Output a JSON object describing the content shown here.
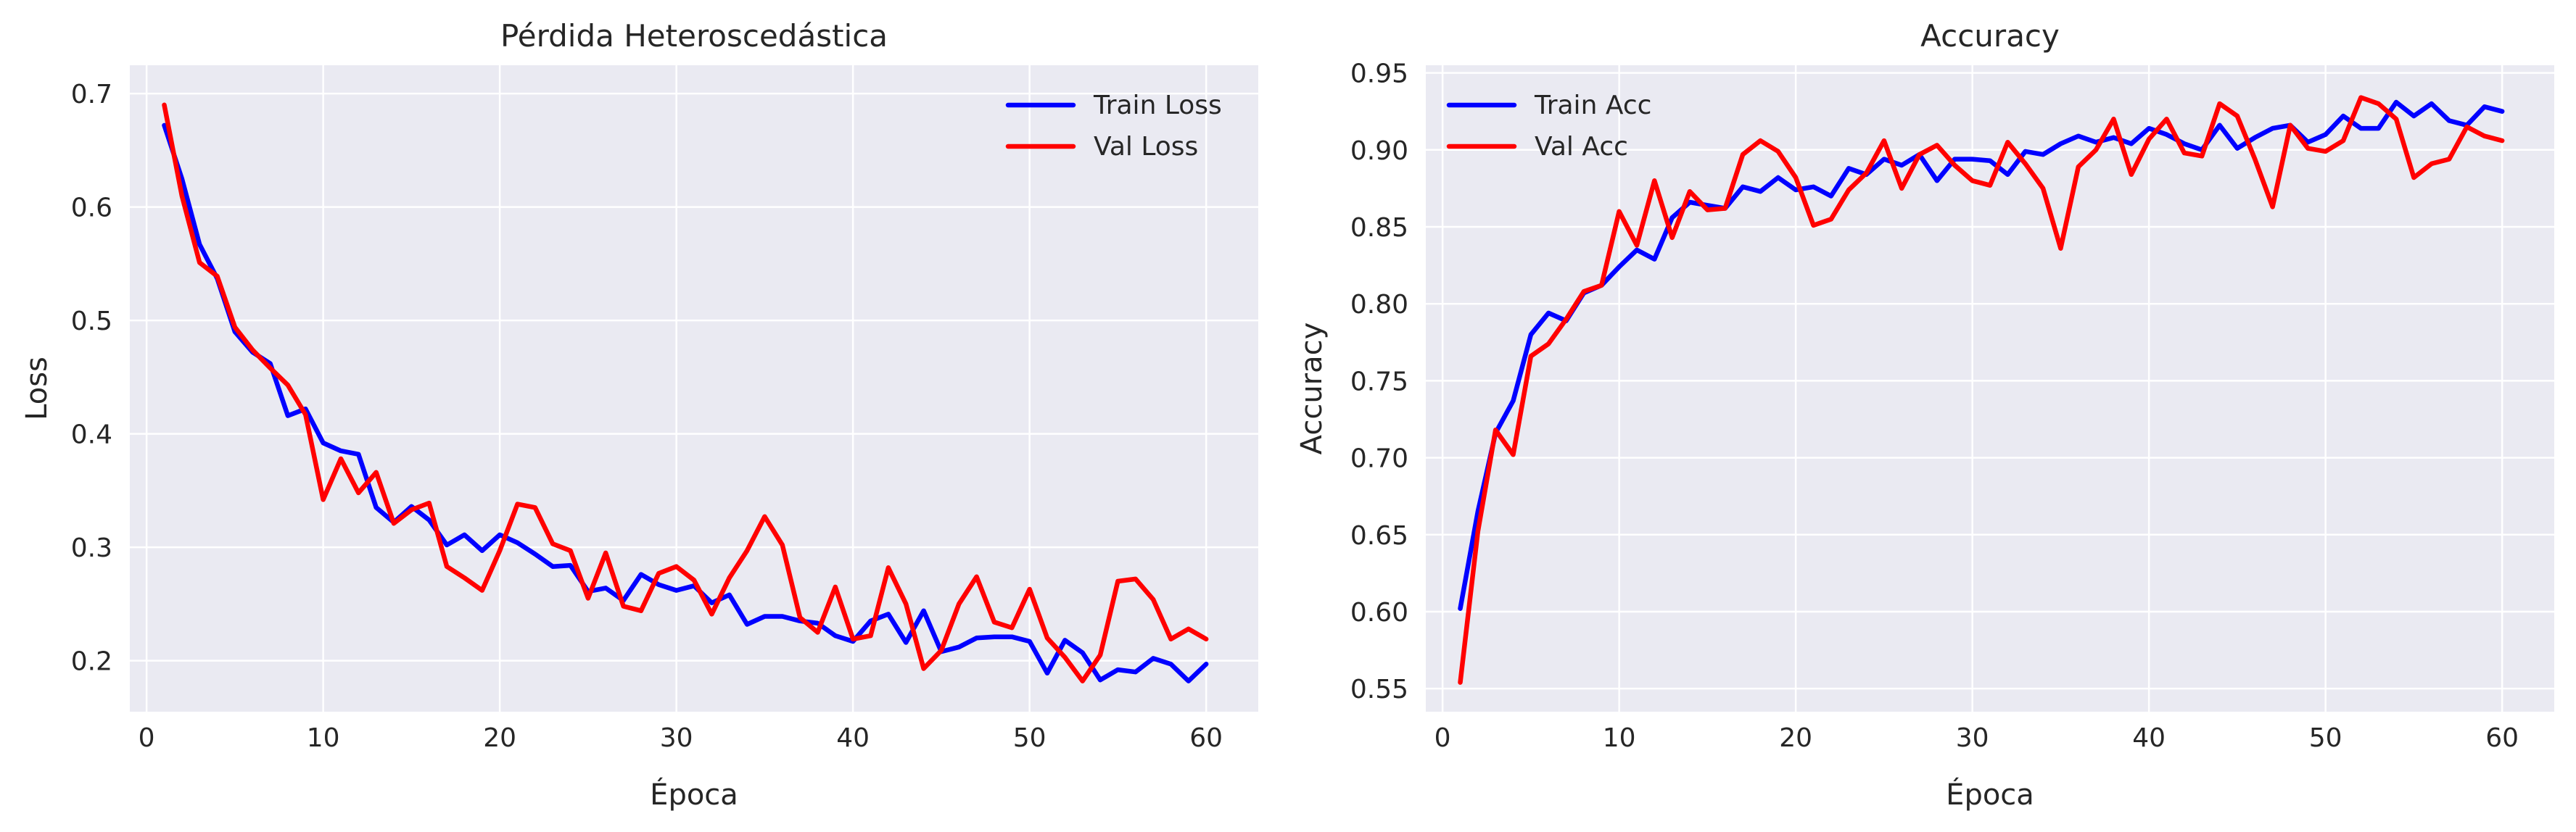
{
  "chart_data": [
    {
      "type": "line",
      "title": "Pérdida Heteroscedástica",
      "xlabel": "Época",
      "ylabel": "Loss",
      "xlim": [
        -0.95,
        62.95
      ],
      "ylim": [
        0.155,
        0.725
      ],
      "xticks": [
        0,
        10,
        20,
        30,
        40,
        50,
        60
      ],
      "xtick_labels": [
        "0",
        "10",
        "20",
        "30",
        "40",
        "50",
        "60"
      ],
      "yticks": [
        0.2,
        0.3,
        0.4,
        0.5,
        0.6,
        0.7
      ],
      "ytick_labels": [
        "0.2",
        "0.3",
        "0.4",
        "0.5",
        "0.6",
        "0.7"
      ],
      "grid": true,
      "legend_position": "top-right",
      "x": [
        1,
        2,
        3,
        4,
        5,
        6,
        7,
        8,
        9,
        10,
        11,
        12,
        13,
        14,
        15,
        16,
        17,
        18,
        19,
        20,
        21,
        22,
        23,
        24,
        25,
        26,
        27,
        28,
        29,
        30,
        31,
        32,
        33,
        34,
        35,
        36,
        37,
        38,
        39,
        40,
        41,
        42,
        43,
        44,
        45,
        46,
        47,
        48,
        49,
        50,
        51,
        52,
        53,
        54,
        55,
        56,
        57,
        58,
        59,
        60
      ],
      "series": [
        {
          "name": "Train Loss",
          "color": "#0000ff",
          "values": [
            0.672,
            0.625,
            0.567,
            0.537,
            0.49,
            0.472,
            0.462,
            0.416,
            0.422,
            0.392,
            0.385,
            0.382,
            0.335,
            0.322,
            0.336,
            0.324,
            0.302,
            0.311,
            0.297,
            0.311,
            0.304,
            0.294,
            0.283,
            0.284,
            0.261,
            0.264,
            0.253,
            0.276,
            0.267,
            0.262,
            0.266,
            0.251,
            0.258,
            0.232,
            0.239,
            0.239,
            0.235,
            0.233,
            0.222,
            0.217,
            0.235,
            0.241,
            0.216,
            0.244,
            0.208,
            0.212,
            0.22,
            0.221,
            0.221,
            0.217,
            0.189,
            0.218,
            0.207,
            0.183,
            0.192,
            0.19,
            0.202,
            0.197,
            0.182,
            0.197
          ]
        },
        {
          "name": "Val Loss",
          "color": "#ff0000",
          "values": [
            0.69,
            0.61,
            0.551,
            0.539,
            0.494,
            0.474,
            0.458,
            0.443,
            0.417,
            0.342,
            0.378,
            0.348,
            0.366,
            0.321,
            0.333,
            0.339,
            0.283,
            0.273,
            0.262,
            0.297,
            0.338,
            0.335,
            0.303,
            0.297,
            0.255,
            0.295,
            0.248,
            0.244,
            0.277,
            0.283,
            0.271,
            0.241,
            0.273,
            0.297,
            0.327,
            0.302,
            0.238,
            0.225,
            0.265,
            0.219,
            0.222,
            0.282,
            0.25,
            0.193,
            0.209,
            0.25,
            0.274,
            0.234,
            0.229,
            0.263,
            0.22,
            0.203,
            0.182,
            0.205,
            0.27,
            0.272,
            0.254,
            0.219,
            0.228,
            0.219
          ]
        }
      ]
    },
    {
      "type": "line",
      "title": "Accuracy",
      "xlabel": "Época",
      "ylabel": "Accuracy",
      "xlim": [
        -0.95,
        62.95
      ],
      "ylim": [
        0.535,
        0.955
      ],
      "xticks": [
        0,
        10,
        20,
        30,
        40,
        50,
        60
      ],
      "xtick_labels": [
        "0",
        "10",
        "20",
        "30",
        "40",
        "50",
        "60"
      ],
      "yticks": [
        0.55,
        0.6,
        0.65,
        0.7,
        0.75,
        0.8,
        0.85,
        0.9,
        0.95
      ],
      "ytick_labels": [
        "0.55",
        "0.60",
        "0.65",
        "0.70",
        "0.75",
        "0.80",
        "0.85",
        "0.90",
        "0.95"
      ],
      "grid": true,
      "legend_position": "top-left",
      "x": [
        1,
        2,
        3,
        4,
        5,
        6,
        7,
        8,
        9,
        10,
        11,
        12,
        13,
        14,
        15,
        16,
        17,
        18,
        19,
        20,
        21,
        22,
        23,
        24,
        25,
        26,
        27,
        28,
        29,
        30,
        31,
        32,
        33,
        34,
        35,
        36,
        37,
        38,
        39,
        40,
        41,
        42,
        43,
        44,
        45,
        46,
        47,
        48,
        49,
        50,
        51,
        52,
        53,
        54,
        55,
        56,
        57,
        58,
        59,
        60
      ],
      "series": [
        {
          "name": "Train Acc",
          "color": "#0000ff",
          "values": [
            0.602,
            0.665,
            0.716,
            0.737,
            0.78,
            0.794,
            0.789,
            0.807,
            0.812,
            0.824,
            0.835,
            0.829,
            0.856,
            0.866,
            0.864,
            0.862,
            0.876,
            0.873,
            0.882,
            0.874,
            0.876,
            0.87,
            0.888,
            0.884,
            0.894,
            0.89,
            0.897,
            0.88,
            0.894,
            0.894,
            0.893,
            0.884,
            0.899,
            0.897,
            0.904,
            0.909,
            0.905,
            0.908,
            0.904,
            0.914,
            0.91,
            0.904,
            0.9,
            0.916,
            0.901,
            0.908,
            0.914,
            0.916,
            0.905,
            0.91,
            0.922,
            0.914,
            0.914,
            0.931,
            0.922,
            0.93,
            0.919,
            0.916,
            0.928,
            0.925
          ]
        },
        {
          "name": "Val Acc",
          "color": "#ff0000",
          "values": [
            0.554,
            0.652,
            0.718,
            0.702,
            0.766,
            0.774,
            0.79,
            0.808,
            0.812,
            0.86,
            0.838,
            0.88,
            0.843,
            0.873,
            0.861,
            0.862,
            0.897,
            0.906,
            0.899,
            0.882,
            0.851,
            0.855,
            0.874,
            0.885,
            0.906,
            0.875,
            0.897,
            0.903,
            0.89,
            0.88,
            0.877,
            0.905,
            0.891,
            0.875,
            0.836,
            0.889,
            0.9,
            0.92,
            0.884,
            0.907,
            0.92,
            0.898,
            0.896,
            0.93,
            0.922,
            0.894,
            0.863,
            0.916,
            0.901,
            0.899,
            0.906,
            0.934,
            0.93,
            0.92,
            0.882,
            0.891,
            0.894,
            0.915,
            0.909,
            0.906
          ]
        }
      ]
    }
  ]
}
